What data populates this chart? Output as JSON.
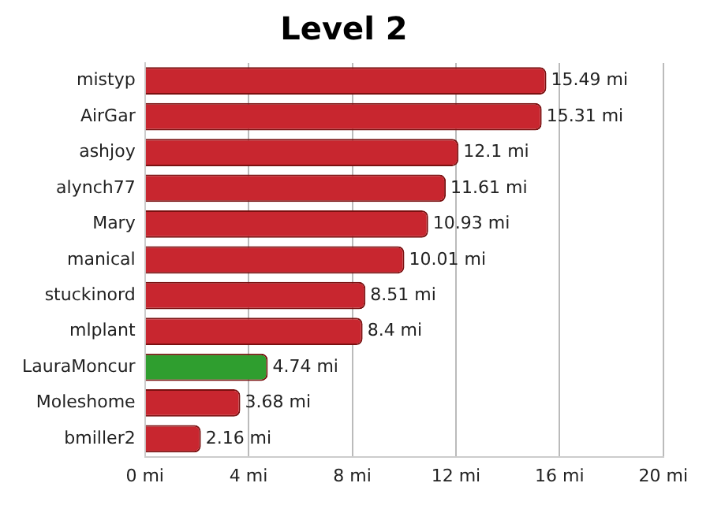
{
  "chart_data": {
    "type": "bar",
    "title": "Level 2",
    "orientation": "horizontal",
    "categories": [
      "mistyp",
      "AirGar",
      "ashjoy",
      "alynch77",
      "Mary",
      "manical",
      "stuckinord",
      "mlplant",
      "LauraMoncur",
      "Moleshome",
      "bmiller2"
    ],
    "values": [
      15.49,
      15.31,
      12.1,
      11.61,
      10.93,
      10.01,
      8.51,
      8.4,
      4.74,
      3.68,
      2.16
    ],
    "colors": [
      "#c8262f",
      "#c8262f",
      "#c8262f",
      "#c8262f",
      "#c8262f",
      "#c8262f",
      "#c8262f",
      "#c8262f",
      "#2f9e2f",
      "#c8262f",
      "#c8262f"
    ],
    "value_labels": [
      "15.49 mi",
      "15.31 mi",
      "12.1 mi",
      "11.61 mi",
      "10.93 mi",
      "10.01 mi",
      "8.51 mi",
      "8.4 mi",
      "4.74 mi",
      "3.68 mi",
      "2.16 mi"
    ],
    "xlim": [
      0,
      20
    ],
    "xticks": [
      {
        "value": 0,
        "label": "0 mi"
      },
      {
        "value": 4,
        "label": "4 mi"
      },
      {
        "value": 8,
        "label": "8 mi"
      },
      {
        "value": 12,
        "label": "12 mi"
      },
      {
        "value": 16,
        "label": "16 mi"
      },
      {
        "value": 20,
        "label": "20 mi"
      }
    ],
    "grid": "x",
    "legend": false
  }
}
